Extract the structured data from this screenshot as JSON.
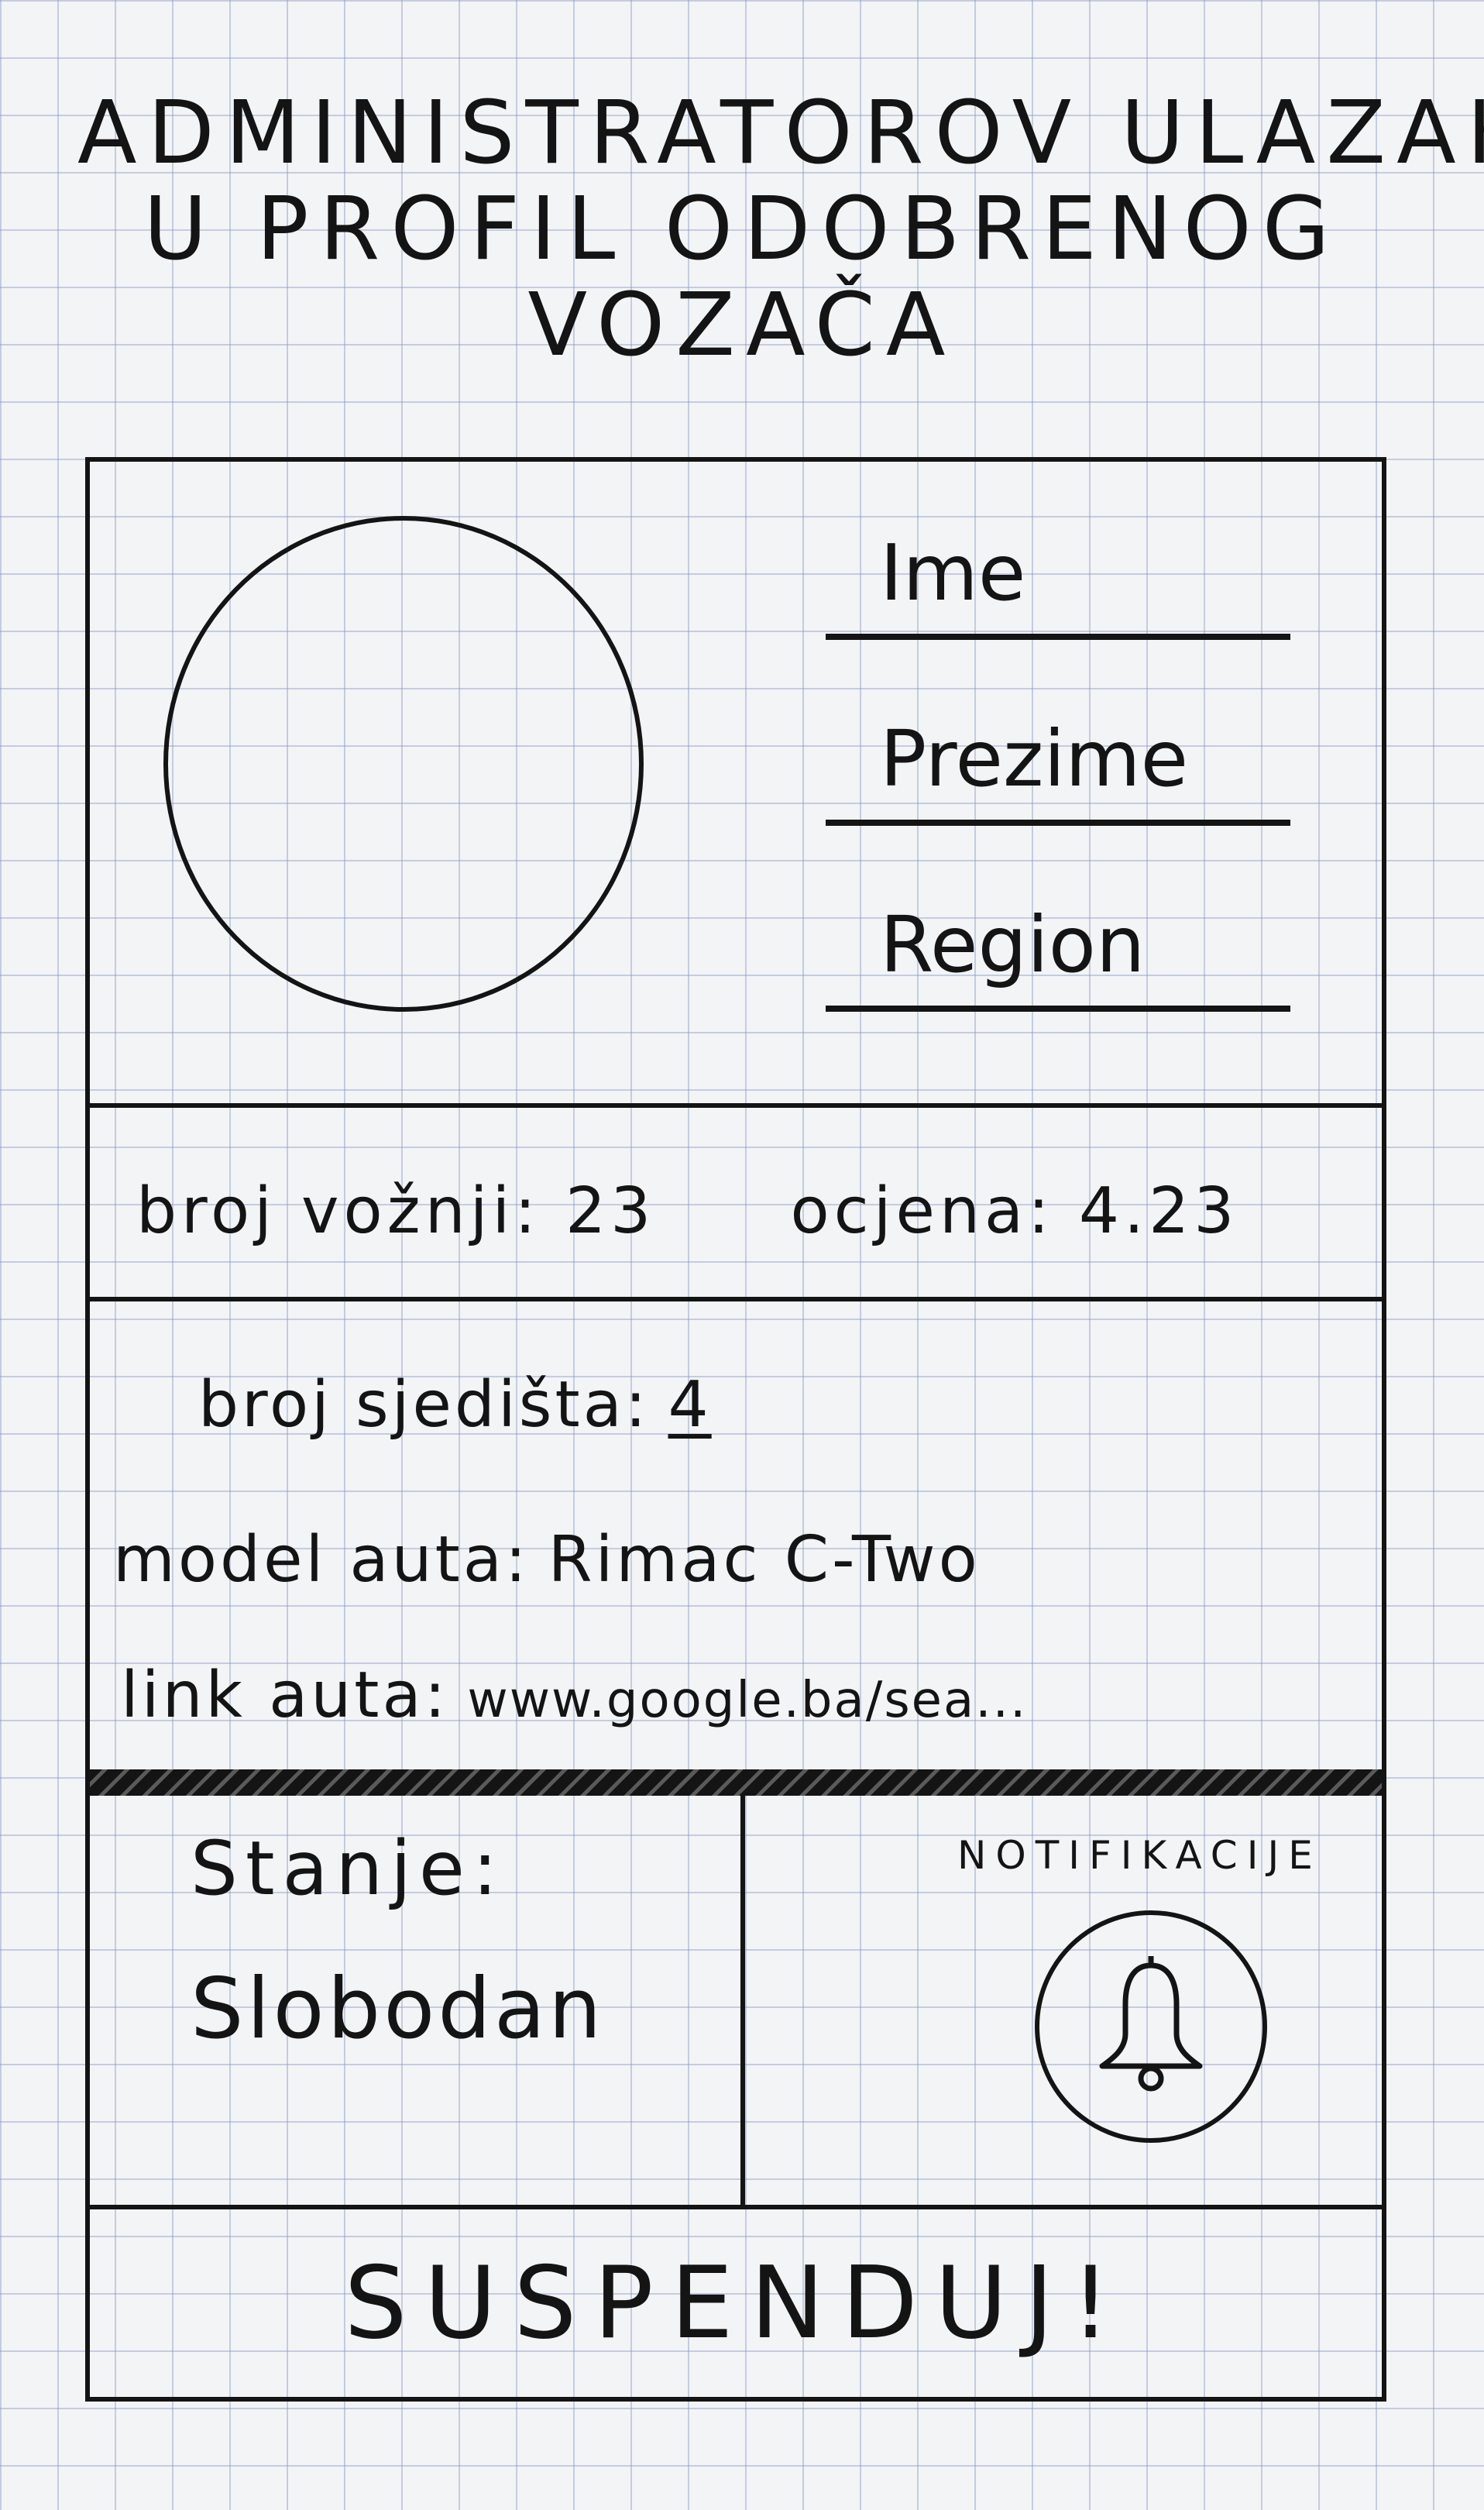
{
  "title": {
    "line1": "ADMINISTRATOROV ULAZAK",
    "line2": "U PROFIL ODOBRENOG",
    "line3": "VOZAČA"
  },
  "profile": {
    "first_name_label": "Ime",
    "last_name_label": "Prezime",
    "region_label": "Region"
  },
  "stats": {
    "rides_label": "broj vožnji:",
    "rides_value": "23",
    "rating_label": "ocjena:",
    "rating_value": "4.23"
  },
  "car": {
    "seats_label": "broj sjedišta:",
    "seats_value": "4",
    "model_label": "model auta:",
    "model_value": "Rimac C-Two",
    "link_label": "link auta:",
    "link_value": "www.google.ba/sea..."
  },
  "status": {
    "label": "Stanje:",
    "value": "Slobodan"
  },
  "notifications": {
    "title": "NOTIFIKACIJE",
    "icon": "bell-icon"
  },
  "actions": {
    "suspend_label": "SUSPENDUJ!"
  }
}
